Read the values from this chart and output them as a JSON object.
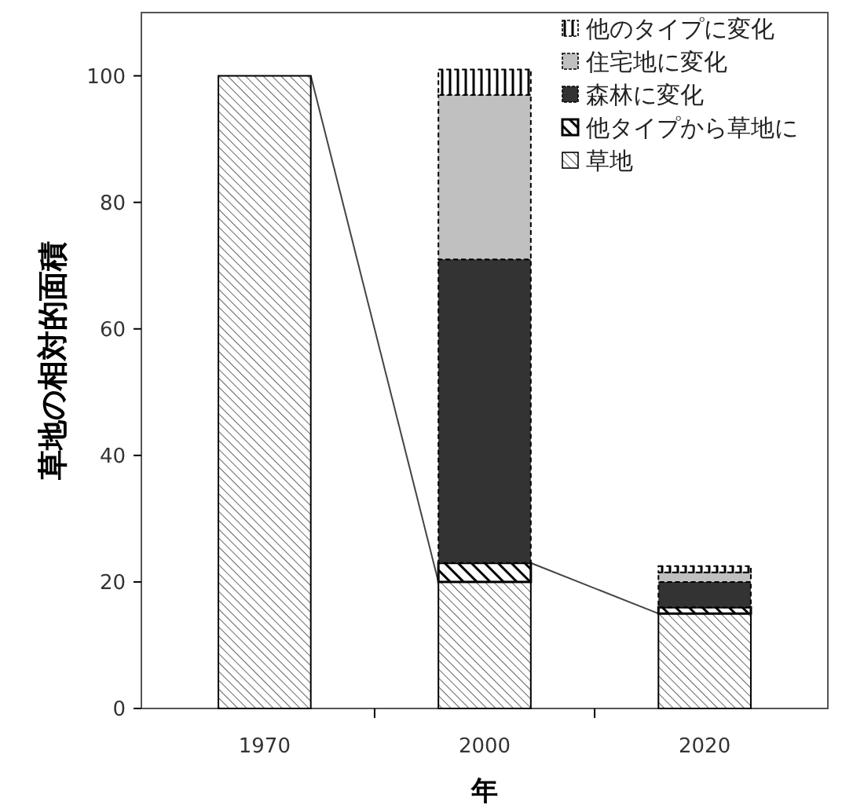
{
  "chart_data": {
    "type": "bar",
    "stacked": true,
    "xlabel": "年",
    "ylabel": "草地の相対的面積",
    "categories": [
      "1970",
      "2000",
      "2020"
    ],
    "series": [
      {
        "name": "草地",
        "color": "#000000",
        "values": [
          100,
          20,
          15
        ]
      },
      {
        "name": "他タイプから草地に",
        "color": "#000000",
        "values": [
          null,
          3,
          1
        ]
      },
      {
        "name": "森林に変化",
        "color": "#333333",
        "values": [
          null,
          48,
          4
        ]
      },
      {
        "name": "住宅地に変化",
        "color": "#c0c0c0",
        "values": [
          null,
          26,
          1.5
        ]
      },
      {
        "name": "他のタイプに変化",
        "color": "#000000",
        "values": [
          null,
          4,
          1
        ]
      }
    ],
    "ylim": [
      0,
      110
    ],
    "yticks": [
      0,
      20,
      40,
      60,
      80,
      100
    ],
    "grid": false,
    "legend": "top right"
  }
}
